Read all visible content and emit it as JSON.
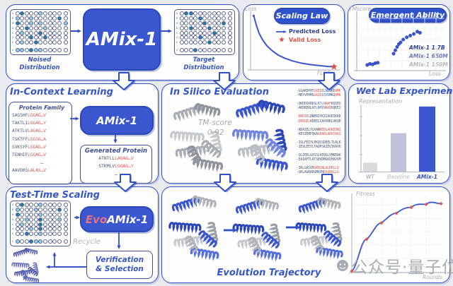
{
  "watermark": {
    "text": "公众号·量子位"
  },
  "panels": {
    "top_flow": {
      "model": "AMix-1",
      "noised": [
        "Noised",
        "Distribution"
      ],
      "target": [
        "Target",
        "Distribution"
      ]
    },
    "in_context": {
      "title": "In-Context Learning",
      "family_title": "Protein Family",
      "family_seqs": [
        [
          "SAGSHF",
          "LGGAG…V"
        ],
        [
          "TAKTLI",
          "LGGAG…Y"
        ],
        [
          "ATKTLV",
          "LAGAG…V"
        ],
        [
          "TSKTFF",
          "LGGSG…A"
        ],
        [
          "SVKSYF",
          "LGGAG…V"
        ],
        [
          "TENHIF",
          "LGGAG…V"
        ],
        [
          "AAVDRS",
          "LALAS…V"
        ]
      ],
      "ellipsis": "…",
      "model": "AMix-1",
      "generated_title": "Generated Protein",
      "generated_seqs": [
        [
          "ATNTLL",
          "LAGAG…V"
        ],
        [
          "STKMLV",
          "LGGAG…Y"
        ]
      ]
    },
    "in_silico": {
      "title": "In Silico Evaluation",
      "tm_label": "TM-score",
      "tm_value": "0.92",
      "pairs": [
        [
          [
            [
              "-GSAKDPHT",
              "n"
            ],
            [
              "LKEQ",
              "r"
            ],
            [
              "ILN",
              "b"
            ],
            [
              "DIKE",
              "n"
            ],
            [
              "AMK",
              "r"
            ]
          ],
          [
            [
              "-MEYVPHMS",
              "n"
            ],
            [
              "LKQQ",
              "r"
            ],
            [
              "IQVD",
              "b"
            ],
            [
              "MKQ",
              "n"
            ],
            [
              "AMK",
              "r"
            ]
          ]
        ],
        [
          [
            [
              "-QKDDIKRDS",
              "n"
            ],
            [
              "LRTL",
              "b"
            ],
            [
              "NAAF",
              "r"
            ],
            [
              "KQIEV",
              "n"
            ]
          ],
          [
            [
              "-AKDKERLAT",
              "n"
            ],
            [
              "LRMIN",
              "b"
            ],
            [
              "ARI",
              "r"
            ],
            [
              "KQKEI",
              "n"
            ]
          ]
        ],
        [
          [
            [
              "-DERIEL",
              "r"
            ],
            [
              "DNERIYKIIASEIKKR",
              "n"
            ]
          ],
          [
            [
              "-DERGEL",
              "r"
            ],
            [
              "KDEELIAVVRKLVKQR",
              "n"
            ]
          ]
        ],
        [
          [
            [
              "-KDAIELYLKAN",
              "n"
            ],
            [
              "KEDLAQKEQNI",
              "r"
            ]
          ],
          [
            [
              "-KESIENFQKA",
              "n"
            ],
            [
              "GRADLAEKTAAI",
              "r"
            ]
          ]
        ],
        [
          [
            [
              "-ISLFEIYLPKQSSDEELTLALK",
              "n"
            ]
          ],
          [
            [
              "-IEVLEEYLFAQPSAIEVIKAVK",
              "n"
            ]
          ]
        ],
        [
          [
            [
              "-QLIEELGVSSLKEQGLVMKEAK",
              "n"
            ]
          ],
          [
            [
              "-EAIAFTLATSEKDMGKVHAVVM",
              "n"
            ]
          ]
        ],
        [
          [
            [
              "-IKLGASVD",
              "n"
            ],
            [
              "GKRLNLALKELLQ",
              "r"
            ]
          ],
          [
            [
              "-GKLAGRADGMAVN",
              "n"
            ],
            [
              "EAVRKLLG",
              "r"
            ]
          ]
        ]
      ]
    },
    "wet_lab": {
      "title": "Wet Lab Experiment"
    },
    "test_time": {
      "title": "Test-Time Scaling",
      "model_prefix": "Evo",
      "model": "AMix-1",
      "recycle": "Recycle",
      "verification": [
        "Verification",
        "& Selection"
      ]
    },
    "evolution": {
      "caption": "Evolution Trajectory"
    }
  },
  "grids": {
    "row_labels": [
      "A",
      "R",
      "N",
      "D",
      "C",
      "Q",
      "E",
      "V"
    ],
    "noised": [
      ".d...l.....",
      "l..l.....d.",
      "d..l.l....l",
      "..d...l....",
      ".l...d.....",
      "...d..d....",
      ".l..d......",
      "ll.dll....."
    ],
    "target": [
      ".dd........",
      "....d......",
      ".....d...d.",
      "..d...d....",
      ".......d...",
      "....d......",
      "......d....",
      "...d......."
    ],
    "test_time": [
      ".d...l.....",
      "l...l....d.",
      "d....l.....",
      "..l..d...l.",
      ".l...d.....",
      "...l.d.....",
      "..d..l.....",
      "l..dll....."
    ]
  },
  "seq_colors": {
    "n": "#49597c",
    "r": "#e0564e",
    "b": "#4a6fd4"
  },
  "chart_data": [
    {
      "id": "scaling_law",
      "type": "line",
      "title": "Scaling Law",
      "xlabel": "FLOPs",
      "ylabel": "Loss",
      "grid": false,
      "legend_position": "upper right",
      "legend": [
        {
          "label": "Predicted Loss",
          "color": "#3a57d0",
          "marker": "line-arrow"
        },
        {
          "label": "Valid Loss",
          "color": "#d9534c",
          "marker": "star"
        }
      ],
      "series": [
        {
          "name": "Predicted Loss",
          "x": [
            0.02,
            0.05,
            0.08,
            0.12,
            0.17,
            0.23,
            0.3,
            0.38,
            0.47,
            0.57,
            0.67,
            0.78,
            0.88,
            0.95
          ],
          "y": [
            0.97,
            0.8,
            0.66,
            0.54,
            0.43,
            0.34,
            0.26,
            0.2,
            0.15,
            0.11,
            0.085,
            0.065,
            0.05,
            0.045
          ]
        }
      ],
      "valid_loss_point": {
        "x": 0.95,
        "y": 0.045
      }
    },
    {
      "id": "emergent_ability",
      "type": "scatter",
      "title": "Emergent Ability",
      "xlabel": "Loss",
      "ylabel": "TMscore",
      "grid": true,
      "series": [
        {
          "name": "AMix-1 1.7B",
          "label_color": "#2c3f8f",
          "points": [
            [
              0.53,
              0.55
            ],
            [
              0.57,
              0.59
            ],
            [
              0.61,
              0.62
            ],
            [
              0.65,
              0.65
            ],
            [
              0.69,
              0.69
            ],
            [
              0.72,
              0.67
            ]
          ]
        },
        {
          "name": "AMix-1 650M",
          "label_color": "#6a79b8",
          "points": [
            [
              0.42,
              0.3
            ],
            [
              0.44,
              0.36
            ],
            [
              0.46,
              0.42
            ],
            [
              0.48,
              0.47
            ],
            [
              0.5,
              0.5
            ]
          ]
        },
        {
          "name": "AMix-1 150M",
          "label_color": "#b4b8c2",
          "points": [
            [
              0.12,
              0.1
            ],
            [
              0.15,
              0.12
            ],
            [
              0.18,
              0.11
            ],
            [
              0.21,
              0.13
            ],
            [
              0.24,
              0.14
            ]
          ]
        }
      ],
      "point_color": "#3a55cc"
    },
    {
      "id": "wet_lab",
      "type": "bar",
      "ylabel": "Representation",
      "categories": [
        "WT",
        "Baseline",
        "AMix-1"
      ],
      "values": [
        0.13,
        0.56,
        0.95
      ],
      "bar_colors": [
        "#d9dade",
        "#bfc3da",
        "#3a57d0"
      ],
      "label_colors": [
        "#9aa0a6",
        "#b9bdc6",
        "#3456c8"
      ]
    },
    {
      "id": "fitness",
      "type": "line",
      "xlabel": "Rounds",
      "ylabel": "Fitness",
      "x": [
        0,
        1,
        2,
        3,
        4,
        5,
        6
      ],
      "y": [
        0.02,
        0.45,
        0.67,
        0.8,
        0.88,
        0.92,
        0.93
      ],
      "line_color": "#3a57d0",
      "marker": "diamond",
      "marker_color": "#e0564e",
      "grid": true
    }
  ]
}
